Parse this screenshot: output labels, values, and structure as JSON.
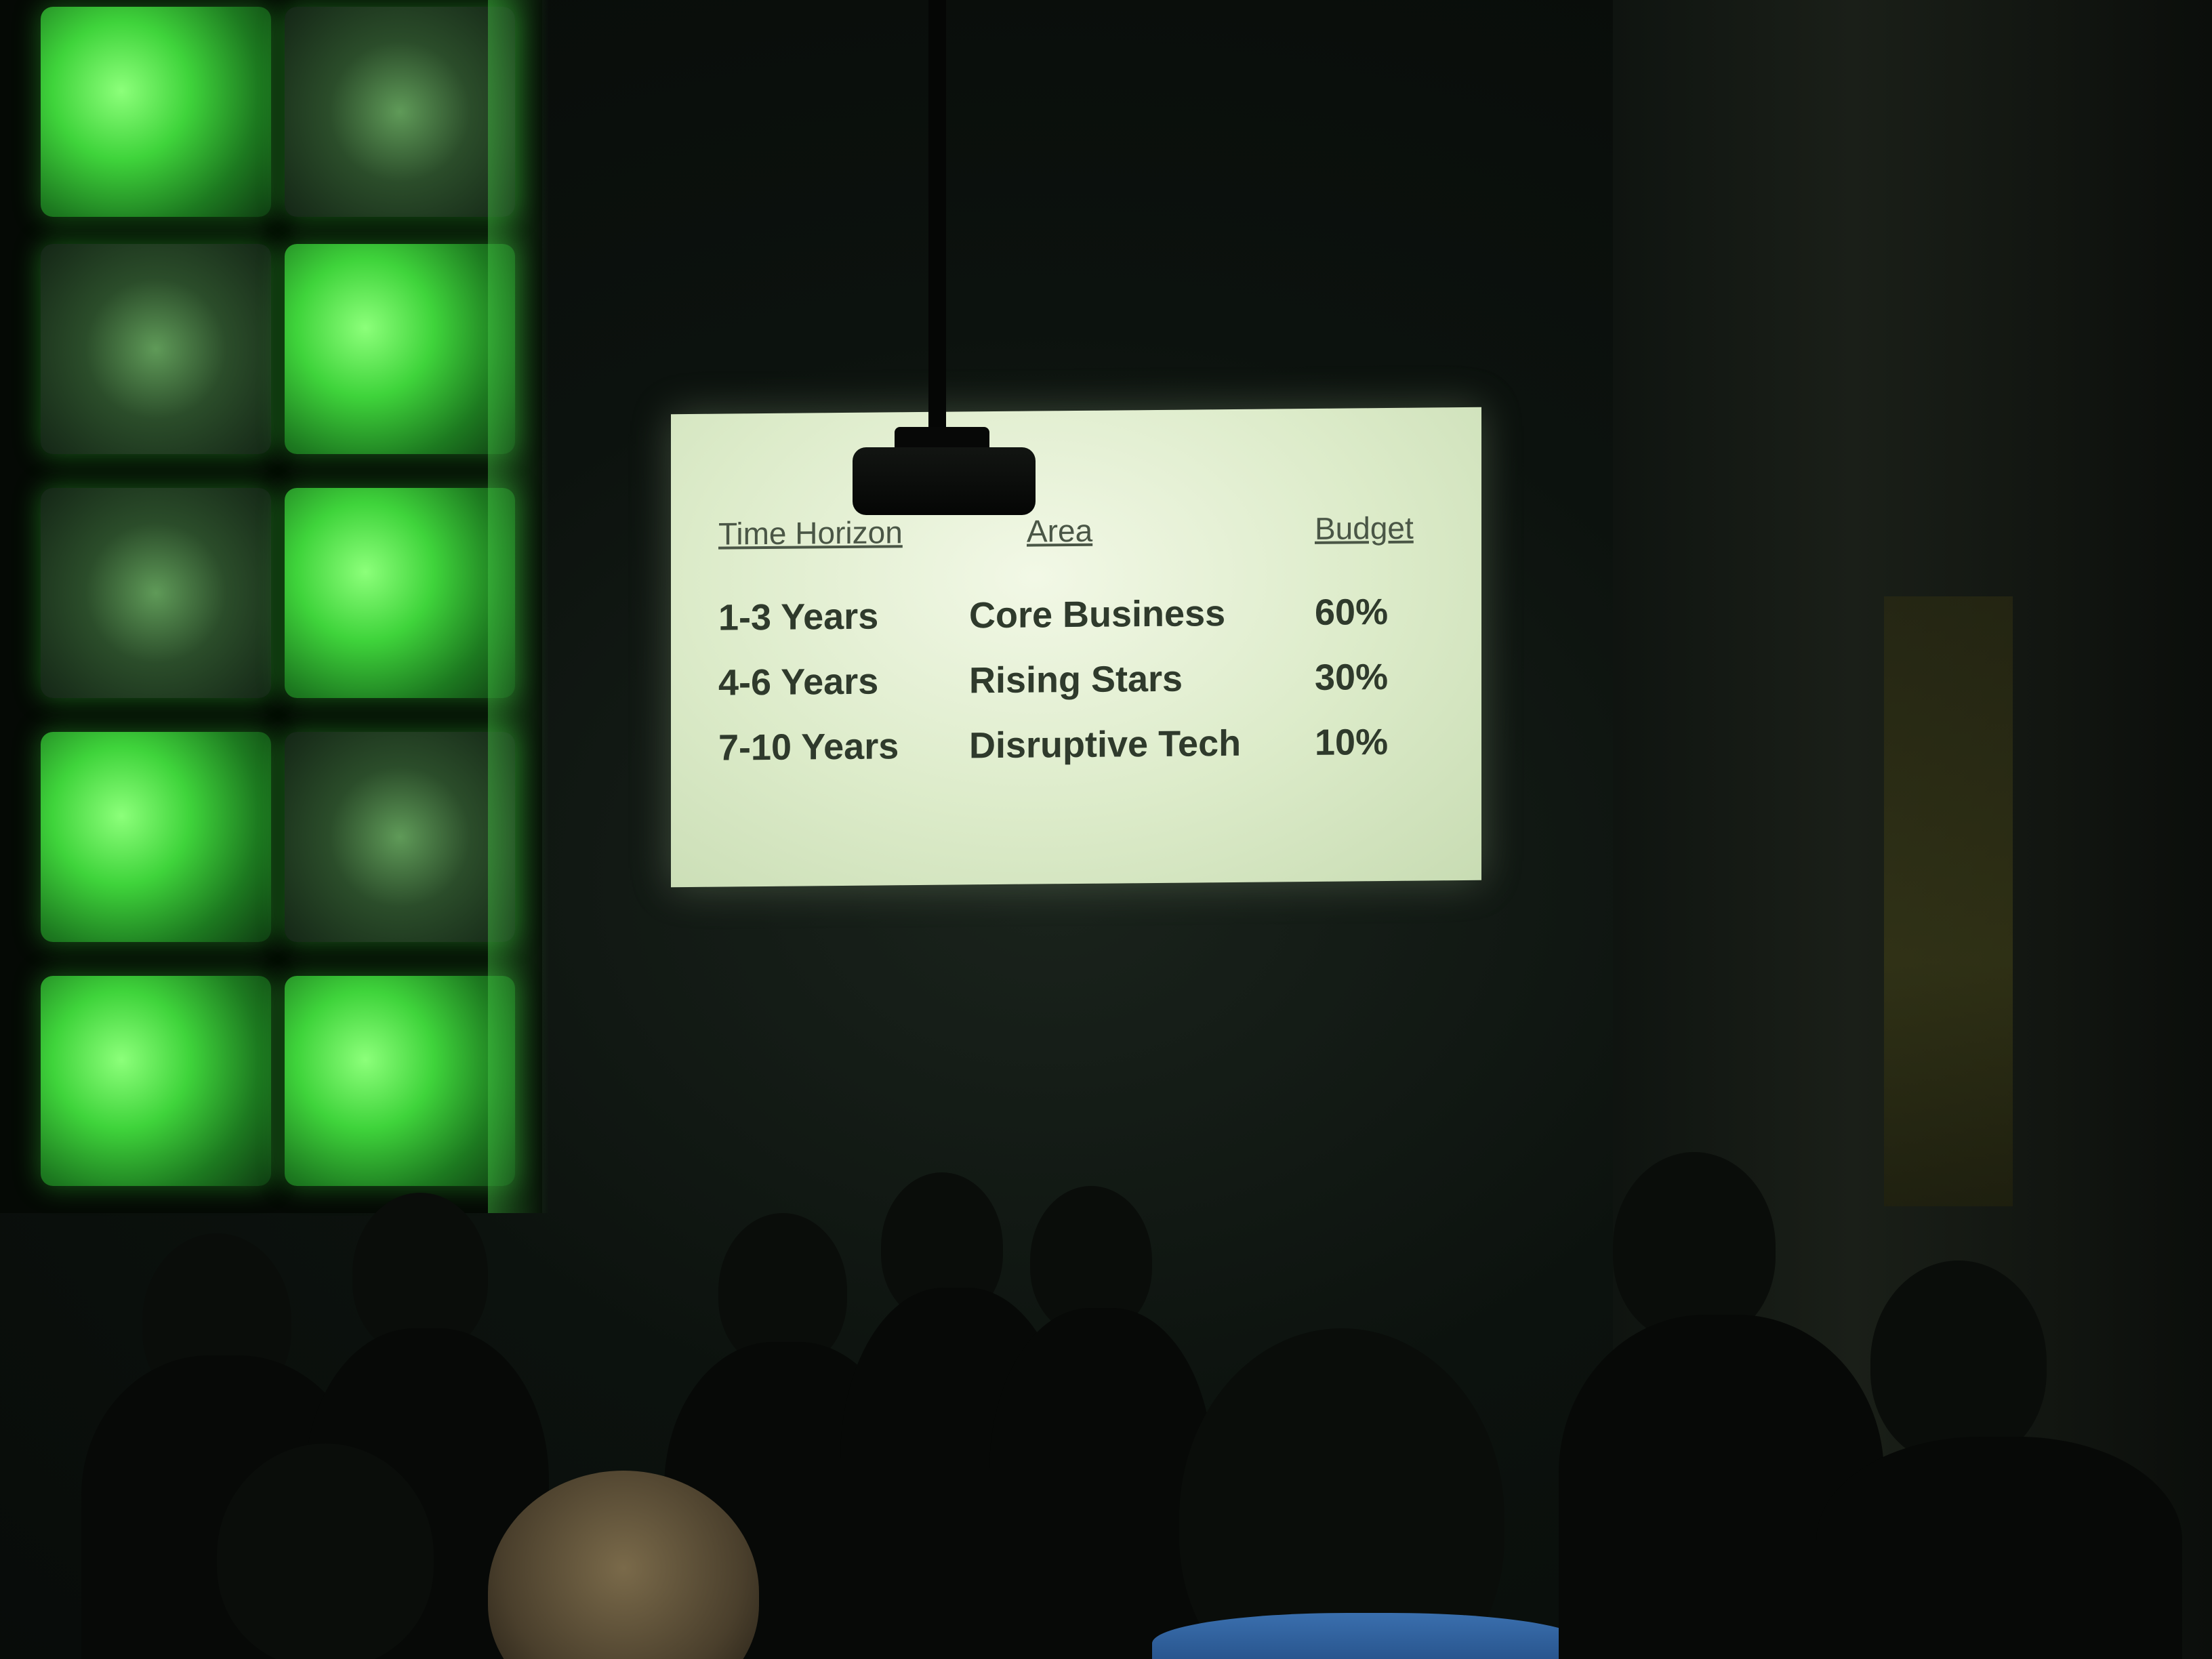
{
  "slide": {
    "headers": [
      "Time Horizon",
      "Area",
      "Budget"
    ],
    "rows": [
      [
        "1-3 Years",
        "Core Business",
        "60%"
      ],
      [
        "4-6 Years",
        "Rising Stars",
        "30%"
      ],
      [
        "7-10 Years",
        "Disruptive Tech",
        "10%"
      ]
    ]
  }
}
